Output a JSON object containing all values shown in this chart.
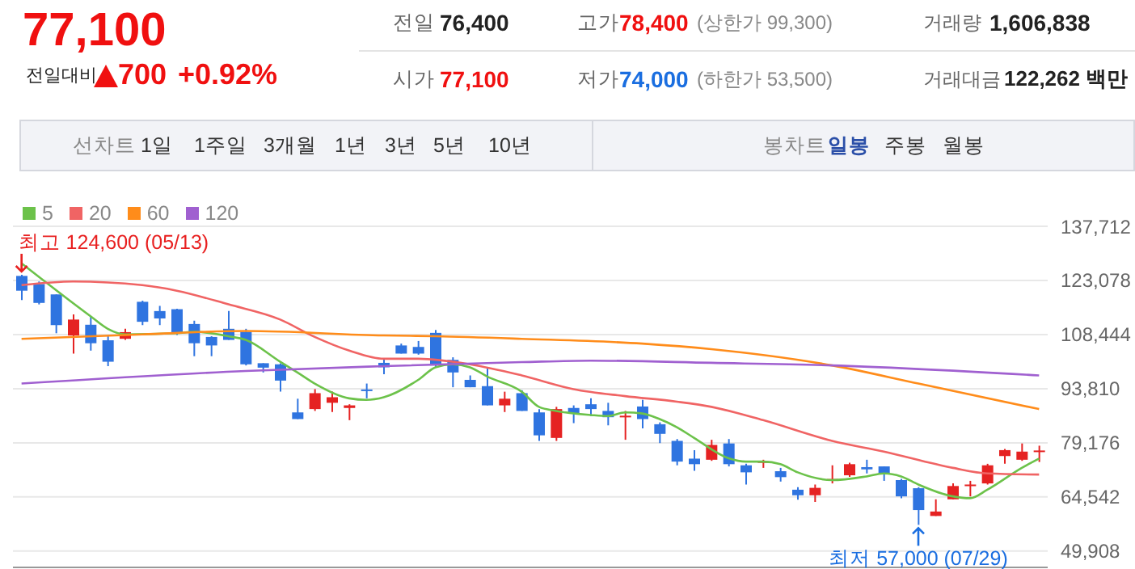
{
  "chart_data": {
    "type": "candlestick",
    "categories": [
      null,
      null,
      null,
      null,
      null,
      null,
      null,
      null,
      null,
      null,
      null,
      null,
      null,
      null,
      null,
      null,
      null,
      null,
      null,
      null,
      null,
      null,
      null,
      null,
      null,
      null,
      null,
      null,
      null,
      null,
      null,
      null,
      null,
      null,
      null,
      null,
      null,
      null,
      null,
      null,
      null,
      null,
      null,
      null,
      null,
      null,
      null,
      null,
      null,
      null,
      null,
      null,
      null,
      null,
      null,
      null,
      null,
      null,
      null,
      null
    ],
    "ohlc": [
      [
        124300,
        124600,
        117800,
        120300
      ],
      [
        122100,
        122800,
        116600,
        117000
      ],
      [
        119300,
        119300,
        108800,
        111000
      ],
      [
        108200,
        113900,
        103300,
        112500
      ],
      [
        111100,
        113400,
        104100,
        106100
      ],
      [
        106900,
        108200,
        99900,
        101100
      ],
      [
        107300,
        110000,
        107000,
        109100
      ],
      [
        117300,
        117600,
        111000,
        111900
      ],
      [
        114800,
        116200,
        111000,
        112800
      ],
      [
        115300,
        115400,
        108300,
        108800
      ],
      [
        111300,
        112200,
        102600,
        106100
      ],
      [
        107800,
        108000,
        102600,
        105500
      ],
      [
        110000,
        114800,
        107000,
        107000
      ],
      [
        109200,
        110000,
        100100,
        100400
      ],
      [
        100700,
        100700,
        98200,
        99500
      ],
      [
        100400,
        100700,
        93000,
        96000
      ],
      [
        87400,
        91100,
        85600,
        85600
      ],
      [
        88300,
        93700,
        87800,
        92600
      ],
      [
        90000,
        93000,
        87500,
        91500
      ],
      [
        88600,
        89600,
        85300,
        89300
      ],
      [
        93600,
        95200,
        91200,
        93300
      ],
      [
        100800,
        101900,
        97700,
        99600
      ],
      [
        105500,
        106000,
        103300,
        103300
      ],
      [
        105100,
        106700,
        103000,
        103300
      ],
      [
        108900,
        109700,
        99600,
        100100
      ],
      [
        101600,
        102300,
        94200,
        98200
      ],
      [
        96200,
        97400,
        94200,
        94200
      ],
      [
        94500,
        99300,
        89300,
        89300
      ],
      [
        89300,
        93000,
        87500,
        91100
      ],
      [
        92600,
        93400,
        87800,
        87800
      ],
      [
        87400,
        88300,
        79700,
        81200
      ],
      [
        80500,
        88900,
        79700,
        88300
      ],
      [
        88600,
        89300,
        84500,
        87100
      ],
      [
        89600,
        91200,
        86400,
        88300
      ],
      [
        87800,
        90000,
        83900,
        86100
      ],
      [
        86200,
        87800,
        80000,
        86500
      ],
      [
        89000,
        90800,
        83100,
        85600
      ],
      [
        84200,
        84700,
        79100,
        81600
      ],
      [
        79700,
        80200,
        73100,
        74100
      ],
      [
        74900,
        77200,
        71600,
        73400
      ],
      [
        74600,
        80000,
        74300,
        78600
      ],
      [
        79000,
        80200,
        72800,
        73400
      ],
      [
        73100,
        73500,
        67900,
        71200
      ],
      [
        73800,
        74600,
        72400,
        74200
      ],
      [
        71500,
        72400,
        68700,
        69900
      ],
      [
        66500,
        67200,
        63800,
        65000
      ],
      [
        65000,
        67900,
        63200,
        67000
      ],
      [
        69100,
        73100,
        68200,
        69400
      ],
      [
        70400,
        73800,
        70000,
        73400
      ],
      [
        72600,
        74600,
        70900,
        72000
      ],
      [
        72800,
        72800,
        68900,
        70900
      ],
      [
        69100,
        69400,
        64200,
        64700
      ],
      [
        66900,
        67200,
        57000,
        61000
      ],
      [
        59400,
        63900,
        59400,
        60600
      ],
      [
        63900,
        68200,
        63900,
        67500
      ],
      [
        67600,
        68900,
        64700,
        67900
      ],
      [
        68200,
        73500,
        67900,
        73100
      ],
      [
        75600,
        77500,
        73500,
        77200
      ],
      [
        74600,
        79000,
        74300,
        76800
      ],
      [
        77100,
        78400,
        74000,
        77100
      ]
    ],
    "colors": [
      "#2f74e0",
      "#2f74e0",
      "#2f74e0",
      "#e52222",
      "#2f74e0",
      "#2f74e0",
      "#e52222",
      "#2f74e0",
      "#2f74e0",
      "#2f74e0",
      "#2f74e0",
      "#2f74e0",
      "#2f74e0",
      "#2f74e0",
      "#2f74e0",
      "#2f74e0",
      "#2f74e0",
      "#e52222",
      "#e52222",
      "#e52222",
      "#2f74e0",
      "#2f74e0",
      "#2f74e0",
      "#2f74e0",
      "#2f74e0",
      "#2f74e0",
      "#2f74e0",
      "#2f74e0",
      "#e52222",
      "#2f74e0",
      "#2f74e0",
      "#e52222",
      "#2f74e0",
      "#2f74e0",
      "#2f74e0",
      "#e52222",
      "#2f74e0",
      "#2f74e0",
      "#2f74e0",
      "#2f74e0",
      "#e52222",
      "#2f74e0",
      "#2f74e0",
      "#e52222",
      "#2f74e0",
      "#2f74e0",
      "#e52222",
      "#e52222",
      "#e52222",
      "#2f74e0",
      "#2f74e0",
      "#2f74e0",
      "#2f74e0",
      "#e52222",
      "#e52222",
      "#e52222",
      "#e52222",
      "#e52222",
      "#e52222",
      "#e52222"
    ],
    "series": [
      {
        "name": "5",
        "type": "line",
        "color": "#6cc24a",
        "values": [
          127700,
          null,
          null,
          null,
          113400,
          110000,
          108500,
          null,
          null,
          108800,
          109200,
          null,
          108000,
          107000,
          null,
          101100,
          98200,
          95200,
          null,
          91200,
          90800,
          91500,
          null,
          96200,
          99600,
          100400,
          99600,
          97100,
          null,
          93000,
          88900,
          87800,
          null,
          86700,
          86400,
          87400,
          87100,
          85600,
          83400,
          80500,
          null,
          75000,
          74100,
          74100,
          73400,
          71200,
          null,
          69100,
          null,
          70100,
          70900,
          70100,
          67900,
          null,
          64700,
          64200,
          66500,
          null,
          72400,
          74900
        ]
      },
      {
        "name": "20",
        "type": "line",
        "color": "#f06464",
        "values": [
          121800,
          null,
          null,
          122800,
          null,
          null,
          null,
          121800,
          null,
          120300,
          null,
          null,
          116600,
          null,
          null,
          112500,
          null,
          107800,
          null,
          104100,
          null,
          101900,
          null,
          101900,
          null,
          null,
          100400,
          null,
          null,
          97400,
          null,
          null,
          93700,
          null,
          null,
          91800,
          null,
          null,
          90300,
          null,
          88900,
          null,
          null,
          85300,
          null,
          null,
          null,
          79700,
          null,
          null,
          76800,
          null,
          null,
          null,
          72400,
          null,
          70900,
          null,
          null,
          70600
        ]
      },
      {
        "name": "60",
        "type": "line",
        "color": "#ff8c1a",
        "values": [
          107300,
          null,
          null,
          null,
          null,
          null,
          null,
          108500,
          null,
          null,
          null,
          null,
          null,
          109400,
          null,
          null,
          null,
          null,
          null,
          null,
          null,
          108200,
          null,
          null,
          108000,
          null,
          null,
          null,
          null,
          107300,
          null,
          null,
          null,
          null,
          null,
          null,
          106000,
          null,
          null,
          null,
          104500,
          null,
          null,
          null,
          null,
          null,
          null,
          100100,
          null,
          null,
          null,
          null,
          95200,
          null,
          null,
          null,
          null,
          null,
          null,
          88300
        ]
      },
      {
        "name": "120",
        "type": "line",
        "color": "#a060d0",
        "values": [
          95200,
          null,
          null,
          null,
          null,
          null,
          null,
          null,
          null,
          null,
          null,
          null,
          null,
          98600,
          null,
          null,
          null,
          null,
          null,
          null,
          null,
          99900,
          null,
          null,
          null,
          null,
          null,
          null,
          null,
          101000,
          null,
          null,
          null,
          101400,
          null,
          null,
          null,
          null,
          null,
          null,
          100800,
          null,
          null,
          null,
          null,
          null,
          null,
          100100,
          null,
          null,
          null,
          null,
          null,
          null,
          null,
          null,
          null,
          null,
          null,
          97400
        ]
      }
    ],
    "ylim": [
      45500,
      137712
    ],
    "yticks": [
      {
        "value": 137712,
        "label": "137,712"
      },
      {
        "value": 123078,
        "label": "123,078"
      },
      {
        "value": 108444,
        "label": "108,444"
      },
      {
        "value": 93810,
        "label": "93,810"
      },
      {
        "value": 79176,
        "label": "79,176"
      },
      {
        "value": 64542,
        "label": "64,542"
      },
      {
        "value": 49908,
        "label": "49,908"
      }
    ],
    "grid": "y",
    "legend": "top left",
    "tick_labels": "y",
    "annotations": [
      "77,100",
      "전일대비",
      "700",
      "+0.92%",
      "전일",
      "76,400",
      "고가",
      "78,400",
      "(상한가 99,300)",
      "거래량",
      "1,606,838",
      "시가",
      "77,100",
      "저가",
      "74,000",
      "(하한가 53,500)",
      "거래대금",
      "122,262 백만",
      "선차트",
      "1일",
      "1주일",
      "3개월",
      "1년",
      "3년",
      "5년",
      "10년",
      "봉차트",
      "일봉",
      "주봉",
      "월봉",
      {
        "text": "최고 124,600 (05/13)",
        "y": 124600
      },
      {
        "text": "최저 57,000 (07/29)",
        "y": 57000
      }
    ]
  }
}
